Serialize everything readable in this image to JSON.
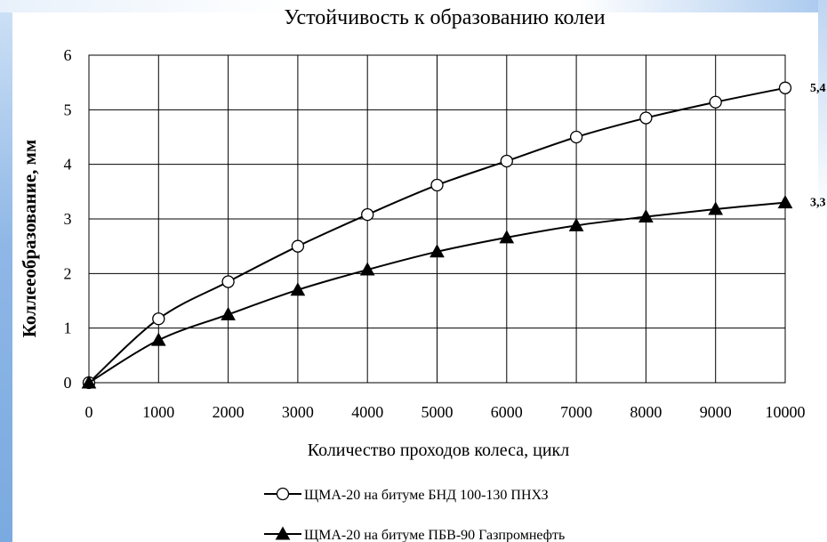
{
  "chart_data": {
    "type": "line",
    "title": "Устойчивость к образованию колеи",
    "xlabel": "Количество проходов колеса, цикл",
    "ylabel": "Коллееобразование, мм",
    "xlim": [
      0,
      10000
    ],
    "ylim": [
      0,
      6
    ],
    "x_ticks": [
      "0",
      "1000",
      "2000",
      "3000",
      "4000",
      "5000",
      "6000",
      "7000",
      "8000",
      "9000",
      "10000"
    ],
    "y_ticks": [
      "0",
      "1",
      "2",
      "3",
      "4",
      "5",
      "6"
    ],
    "grid": true,
    "legend_position": "bottom",
    "x": [
      0,
      1000,
      2000,
      3000,
      4000,
      5000,
      6000,
      7000,
      8000,
      9000,
      10000
    ],
    "series": [
      {
        "name": "ЩМА-20 на битуме БНД 100-130 ПНХЗ",
        "marker": "circle-open",
        "color": "#000000",
        "values": [
          0,
          1.17,
          1.85,
          2.5,
          3.08,
          3.62,
          4.06,
          4.5,
          4.85,
          5.14,
          5.4
        ],
        "end_label": "5,4"
      },
      {
        "name": "ЩМА-20 на битуме ПБВ-90 Газпромнефть",
        "marker": "triangle-filled",
        "color": "#000000",
        "values": [
          0,
          0.78,
          1.25,
          1.7,
          2.07,
          2.4,
          2.66,
          2.88,
          3.04,
          3.18,
          3.3
        ],
        "end_label": "3,3"
      }
    ]
  }
}
